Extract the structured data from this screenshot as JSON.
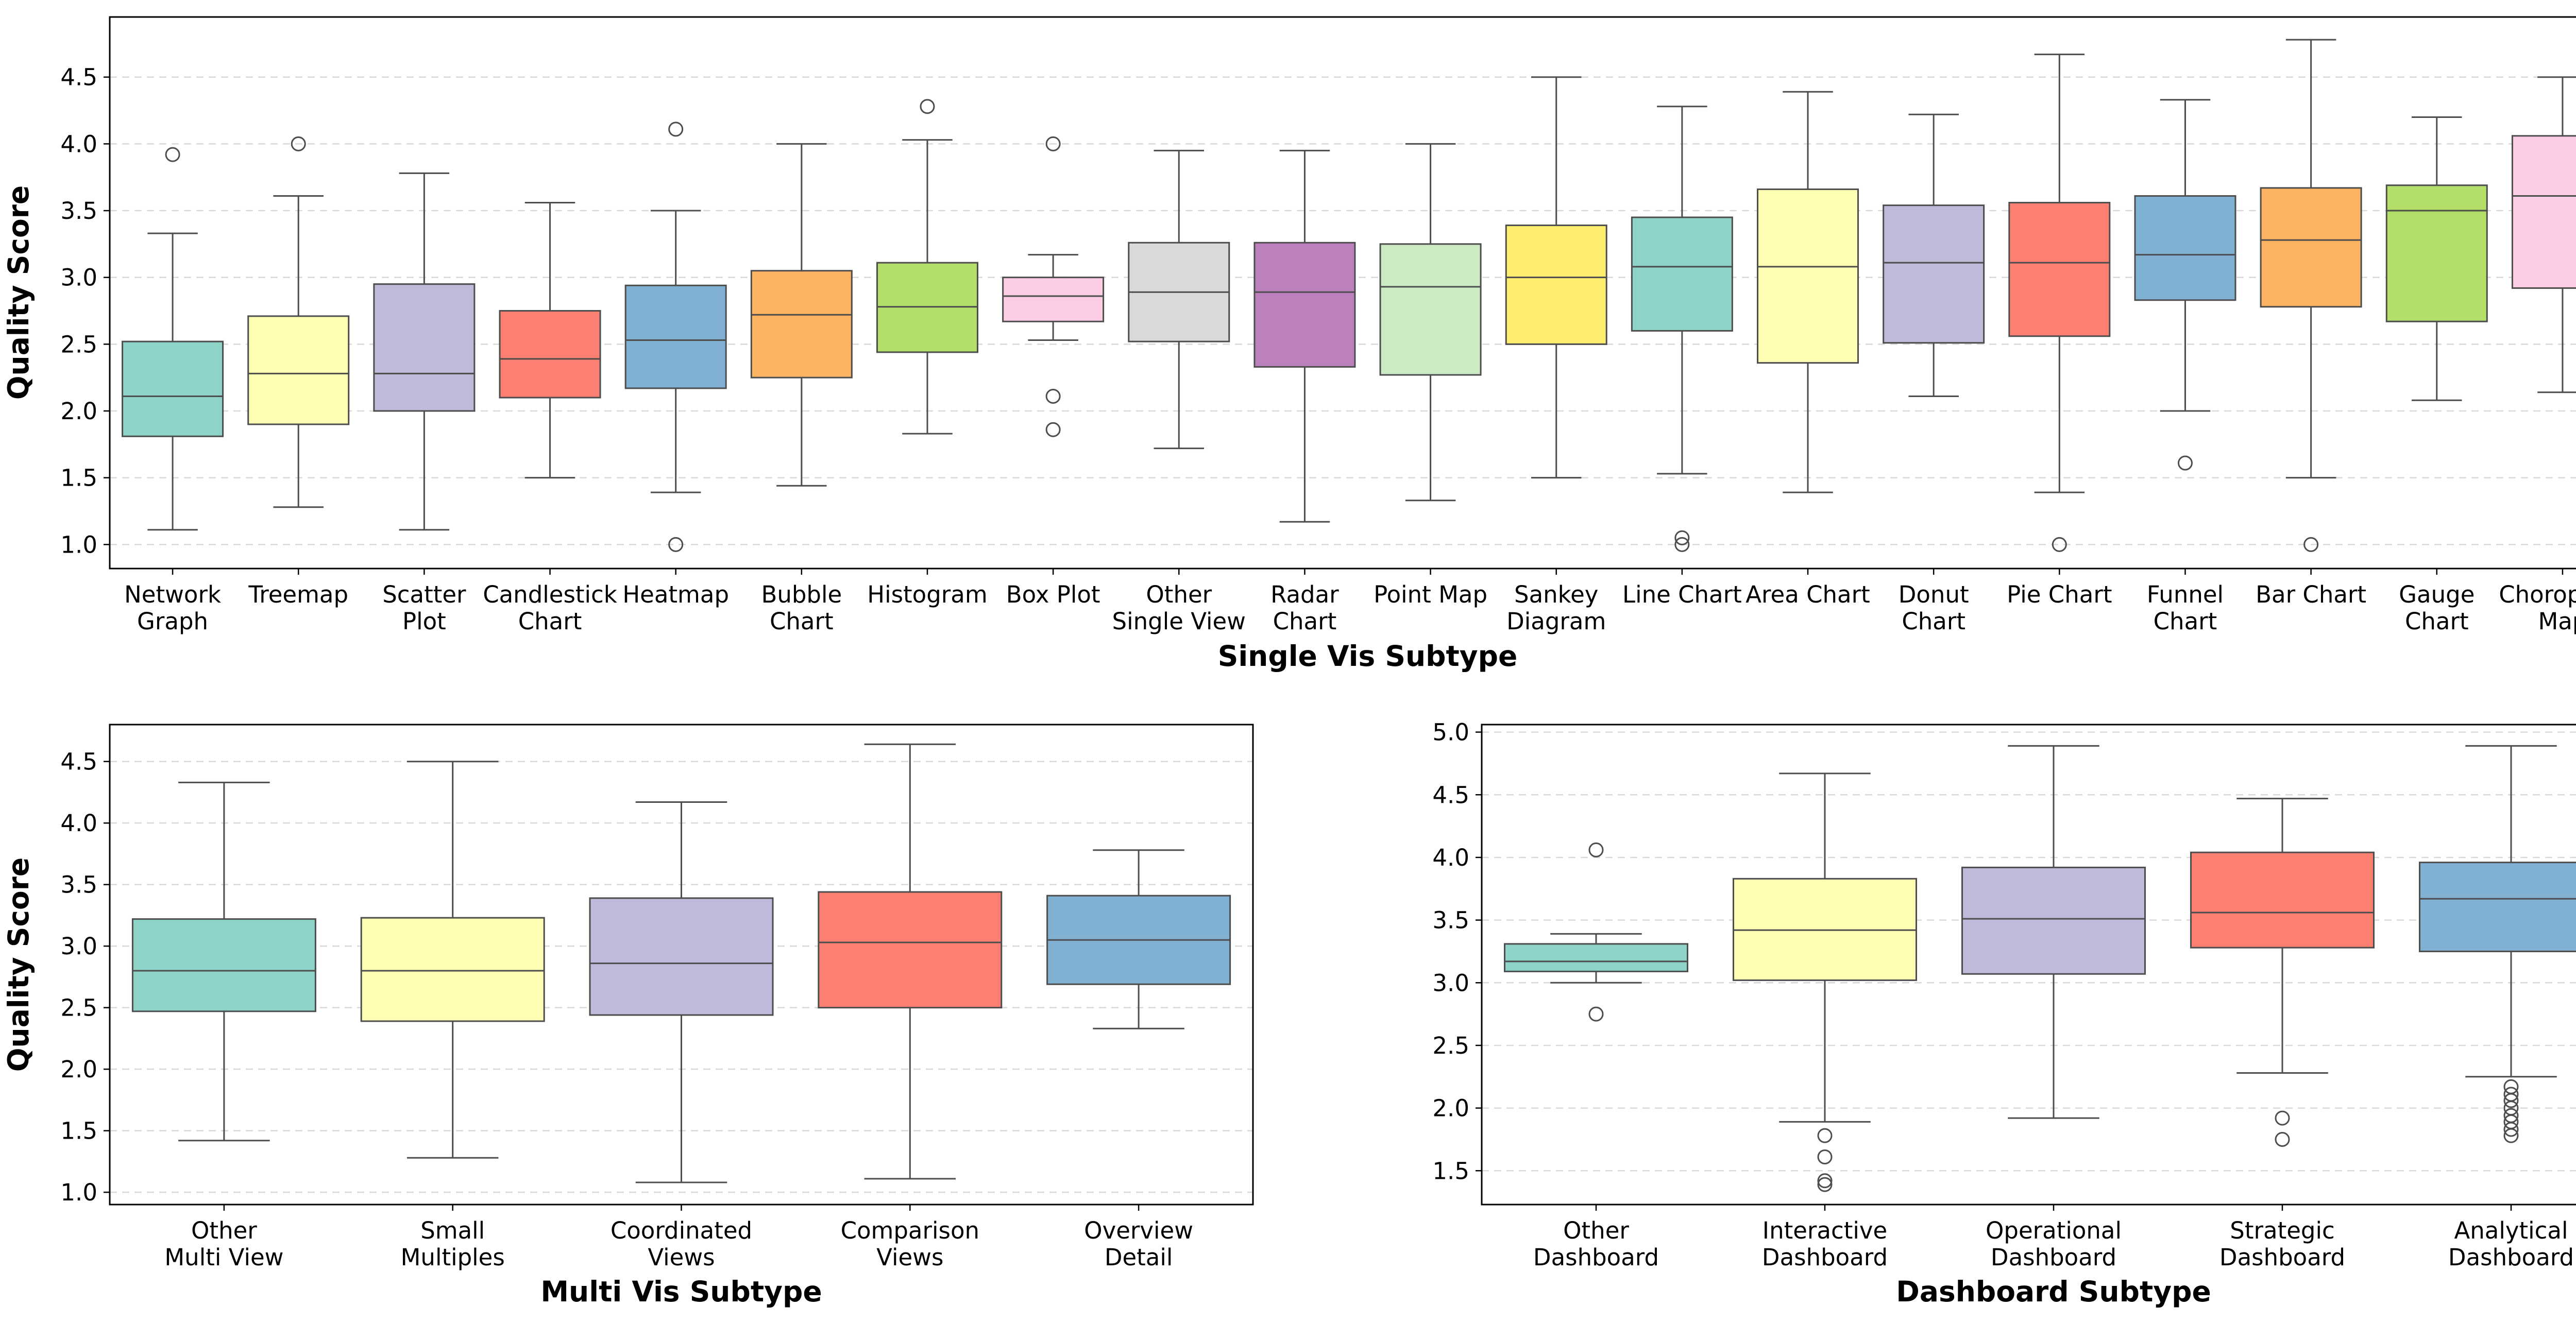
{
  "chart_data": [
    {
      "type": "box",
      "xlabel": "Single Vis Subtype",
      "ylabel": "Quality Score",
      "ylim": [
        0.82,
        4.95
      ],
      "yticks": [
        "1.0",
        "1.5",
        "2.0",
        "2.5",
        "3.0",
        "3.5",
        "4.0",
        "4.5"
      ],
      "grid": "horizontal dashed",
      "categories": [
        {
          "label": "Network\nGraph",
          "color": "#8dd3c7",
          "whislo": 1.11,
          "q1": 1.81,
          "med": 2.11,
          "q3": 2.52,
          "whishi": 3.33,
          "fliers": [
            3.92
          ]
        },
        {
          "label": "Treemap",
          "color": "#ffffb3",
          "whislo": 1.28,
          "q1": 1.9,
          "med": 2.28,
          "q3": 2.71,
          "whishi": 3.61,
          "fliers": [
            4.0
          ]
        },
        {
          "label": "Scatter\nPlot",
          "color": "#bebada",
          "whislo": 1.11,
          "q1": 2.0,
          "med": 2.28,
          "q3": 2.95,
          "whishi": 3.78,
          "fliers": []
        },
        {
          "label": "Candlestick\nChart",
          "color": "#fb8072",
          "whislo": 1.5,
          "q1": 2.1,
          "med": 2.39,
          "q3": 2.75,
          "whishi": 3.56,
          "fliers": []
        },
        {
          "label": "Heatmap",
          "color": "#80b1d3",
          "whislo": 1.39,
          "q1": 2.17,
          "med": 2.53,
          "q3": 2.94,
          "whishi": 3.5,
          "fliers": [
            1.0,
            4.11
          ]
        },
        {
          "label": "Bubble\nChart",
          "color": "#fdb462",
          "whislo": 1.44,
          "q1": 2.25,
          "med": 2.72,
          "q3": 3.05,
          "whishi": 4.0,
          "fliers": []
        },
        {
          "label": "Histogram",
          "color": "#b3de69",
          "whislo": 1.83,
          "q1": 2.44,
          "med": 2.78,
          "q3": 3.11,
          "whishi": 4.03,
          "fliers": [
            4.28
          ]
        },
        {
          "label": "Box Plot",
          "color": "#fccde5",
          "whislo": 2.53,
          "q1": 2.67,
          "med": 2.86,
          "q3": 3.0,
          "whishi": 3.17,
          "fliers": [
            1.86,
            2.11,
            4.0
          ]
        },
        {
          "label": "Other\nSingle View",
          "color": "#d9d9d9",
          "whislo": 1.72,
          "q1": 2.52,
          "med": 2.89,
          "q3": 3.26,
          "whishi": 3.95,
          "fliers": []
        },
        {
          "label": "Radar\nChart",
          "color": "#bc80bd",
          "whislo": 1.17,
          "q1": 2.33,
          "med": 2.89,
          "q3": 3.26,
          "whishi": 3.95,
          "fliers": []
        },
        {
          "label": "Point Map",
          "color": "#ccebc5",
          "whislo": 1.33,
          "q1": 2.27,
          "med": 2.93,
          "q3": 3.25,
          "whishi": 4.0,
          "fliers": []
        },
        {
          "label": "Sankey\nDiagram",
          "color": "#ffed6f",
          "whislo": 1.5,
          "q1": 2.5,
          "med": 3.0,
          "q3": 3.39,
          "whishi": 4.5,
          "fliers": []
        },
        {
          "label": "Line Chart",
          "color": "#8dd3c7",
          "whislo": 1.53,
          "q1": 2.6,
          "med": 3.08,
          "q3": 3.45,
          "whishi": 4.28,
          "fliers": [
            1.0,
            1.05
          ]
        },
        {
          "label": "Area Chart",
          "color": "#ffffb3",
          "whislo": 1.39,
          "q1": 2.36,
          "med": 3.08,
          "q3": 3.66,
          "whishi": 4.39,
          "fliers": []
        },
        {
          "label": "Donut\nChart",
          "color": "#bebada",
          "whislo": 2.11,
          "q1": 2.51,
          "med": 3.11,
          "q3": 3.54,
          "whishi": 4.22,
          "fliers": []
        },
        {
          "label": "Pie Chart",
          "color": "#fb8072",
          "whislo": 1.39,
          "q1": 2.56,
          "med": 3.11,
          "q3": 3.56,
          "whishi": 4.67,
          "fliers": [
            1.0
          ]
        },
        {
          "label": "Funnel\nChart",
          "color": "#80b1d3",
          "whislo": 2.0,
          "q1": 2.83,
          "med": 3.17,
          "q3": 3.61,
          "whishi": 4.33,
          "fliers": [
            1.61
          ]
        },
        {
          "label": "Bar Chart",
          "color": "#fdb462",
          "whislo": 1.5,
          "q1": 2.78,
          "med": 3.28,
          "q3": 3.67,
          "whishi": 4.78,
          "fliers": [
            1.0
          ]
        },
        {
          "label": "Gauge\nChart",
          "color": "#b3de69",
          "whislo": 2.08,
          "q1": 2.67,
          "med": 3.5,
          "q3": 3.69,
          "whishi": 4.2,
          "fliers": []
        },
        {
          "label": "Choropleth\nMap",
          "color": "#fccde5",
          "whislo": 2.14,
          "q1": 2.92,
          "med": 3.61,
          "q3": 4.06,
          "whishi": 4.5,
          "fliers": []
        }
      ]
    },
    {
      "type": "box",
      "xlabel": "Multi Vis Subtype",
      "ylabel": "Quality Score",
      "ylim": [
        0.9,
        4.8
      ],
      "yticks": [
        "1.0",
        "1.5",
        "2.0",
        "2.5",
        "3.0",
        "3.5",
        "4.0",
        "4.5"
      ],
      "grid": "horizontal dashed",
      "categories": [
        {
          "label": "Other\nMulti View",
          "color": "#8dd3c7",
          "whislo": 1.42,
          "q1": 2.47,
          "med": 2.8,
          "q3": 3.22,
          "whishi": 4.33,
          "fliers": []
        },
        {
          "label": "Small\nMultiples",
          "color": "#ffffb3",
          "whislo": 1.28,
          "q1": 2.39,
          "med": 2.8,
          "q3": 3.23,
          "whishi": 4.5,
          "fliers": []
        },
        {
          "label": "Coordinated\nViews",
          "color": "#bebada",
          "whislo": 1.08,
          "q1": 2.44,
          "med": 2.86,
          "q3": 3.39,
          "whishi": 4.17,
          "fliers": []
        },
        {
          "label": "Comparison\nViews",
          "color": "#fb8072",
          "whislo": 1.11,
          "q1": 2.5,
          "med": 3.03,
          "q3": 3.44,
          "whishi": 4.64,
          "fliers": []
        },
        {
          "label": "Overview\nDetail",
          "color": "#80b1d3",
          "whislo": 2.33,
          "q1": 2.69,
          "med": 3.05,
          "q3": 3.41,
          "whishi": 3.78,
          "fliers": []
        }
      ]
    },
    {
      "type": "box",
      "xlabel": "Dashboard Subtype",
      "ylabel": "",
      "ylim": [
        1.23,
        5.06
      ],
      "yticks": [
        "1.5",
        "2.0",
        "2.5",
        "3.0",
        "3.5",
        "4.0",
        "4.5",
        "5.0"
      ],
      "grid": "horizontal dashed",
      "categories": [
        {
          "label": "Other\nDashboard",
          "color": "#8dd3c7",
          "whislo": 3.0,
          "q1": 3.09,
          "med": 3.17,
          "q3": 3.31,
          "whishi": 3.39,
          "fliers": [
            2.75,
            4.06
          ]
        },
        {
          "label": "Interactive\nDashboard",
          "color": "#ffffb3",
          "whislo": 1.89,
          "q1": 3.02,
          "med": 3.42,
          "q3": 3.83,
          "whishi": 4.67,
          "fliers": [
            1.39,
            1.42,
            1.61,
            1.78
          ]
        },
        {
          "label": "Operational\nDashboard",
          "color": "#bebada",
          "whislo": 1.92,
          "q1": 3.07,
          "med": 3.51,
          "q3": 3.92,
          "whishi": 4.89,
          "fliers": []
        },
        {
          "label": "Strategic\nDashboard",
          "color": "#fb8072",
          "whislo": 2.28,
          "q1": 3.28,
          "med": 3.56,
          "q3": 4.04,
          "whishi": 4.47,
          "fliers": [
            1.75,
            1.92
          ]
        },
        {
          "label": "Analytical\nDashboard",
          "color": "#80b1d3",
          "whislo": 2.25,
          "q1": 3.25,
          "med": 3.67,
          "q3": 3.96,
          "whishi": 4.89,
          "fliers": [
            1.78,
            1.83,
            1.89,
            1.94,
            2.0,
            2.06,
            2.11,
            2.17
          ]
        }
      ]
    }
  ]
}
